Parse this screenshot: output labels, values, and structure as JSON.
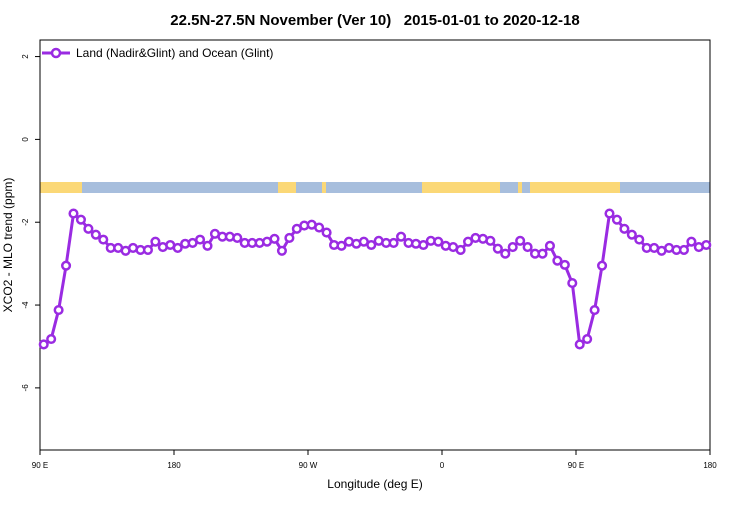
{
  "chart_data": {
    "type": "line",
    "title": "22.5N-27.5N November (Ver 10)   2015-01-01 to 2020-12-18",
    "x_label": "Longitude (deg E)",
    "y_label": "XCO2 - MLO trend (ppm)",
    "xlim": [
      90,
      540
    ],
    "xticks": [
      {
        "value": 90,
        "label": "90 E"
      },
      180,
      {
        "value": 270,
        "label": "90 W"
      },
      {
        "value": 360,
        "label": "0"
      },
      {
        "value": 450,
        "label": "90 E"
      },
      {
        "value": 540,
        "label": "180"
      }
    ],
    "ylim": [
      -7.5,
      2.4
    ],
    "yticks": [
      2,
      0,
      -2,
      -4,
      -6
    ],
    "legend": "top-left",
    "x": [
      92.5,
      97.5,
      102.5,
      107.5,
      112.5,
      117.5,
      122.5,
      127.5,
      132.5,
      137.5,
      142.5,
      147.5,
      152.5,
      157.5,
      162.5,
      167.5,
      172.5,
      177.5,
      182.5,
      187.5,
      192.5,
      197.5,
      202.5,
      207.5,
      212.5,
      217.5,
      222.5,
      227.5,
      232.5,
      237.5,
      242.5,
      247.5,
      252.5,
      257.5,
      262.5,
      267.5,
      272.5,
      277.5,
      282.5,
      287.5,
      292.5,
      297.5,
      302.5,
      307.5,
      312.5,
      317.5,
      322.5,
      327.5,
      332.5,
      337.5,
      342.5,
      347.5,
      352.5,
      357.5,
      362.5,
      367.5,
      372.5,
      377.5,
      382.5,
      387.5,
      392.5,
      397.5,
      402.5,
      407.5,
      412.5,
      417.5,
      422.5,
      427.5,
      432.5,
      437.5,
      442.5,
      447.5,
      452.5,
      457.5,
      462.5,
      467.5,
      472.5,
      477.5,
      482.5,
      487.5,
      492.5,
      497.5,
      502.5,
      507.5,
      512.5,
      517.5,
      522.5,
      527.5,
      532.5,
      537.5
    ],
    "series": [
      {
        "name": "Land (Nadir&Glint) and Ocean (Glint)",
        "color": "#9a2be2",
        "values": [
          -4.95,
          -4.82,
          -4.12,
          -3.05,
          -1.79,
          -1.94,
          -2.16,
          -2.3,
          -2.42,
          -2.62,
          -2.62,
          -2.69,
          -2.62,
          -2.67,
          -2.67,
          -2.47,
          -2.6,
          -2.55,
          -2.62,
          -2.52,
          -2.5,
          -2.42,
          -2.57,
          -2.28,
          -2.35,
          -2.35,
          -2.38,
          -2.5,
          -2.5,
          -2.5,
          -2.47,
          -2.4,
          -2.69,
          -2.38,
          -2.16,
          -2.08,
          -2.06,
          -2.13,
          -2.25,
          -2.55,
          -2.57,
          -2.47,
          -2.52,
          -2.47,
          -2.55,
          -2.45,
          -2.5,
          -2.5,
          -2.35,
          -2.5,
          -2.52,
          -2.55,
          -2.45,
          -2.47,
          -2.57,
          -2.6,
          -2.67,
          -2.47,
          -2.38,
          -2.4,
          -2.45,
          -2.64,
          -2.76,
          -2.6,
          -2.45,
          -2.6,
          -2.76,
          -2.76,
          -2.57,
          -2.93,
          -3.03,
          -3.47,
          -4.95,
          -4.82,
          -4.12,
          -3.05,
          -1.79,
          -1.94,
          -2.16,
          -2.3,
          -2.42,
          -2.62,
          -2.62,
          -2.69,
          -2.62,
          -2.67,
          -2.67,
          -2.47,
          -2.6,
          -2.55
        ]
      }
    ]
  }
}
